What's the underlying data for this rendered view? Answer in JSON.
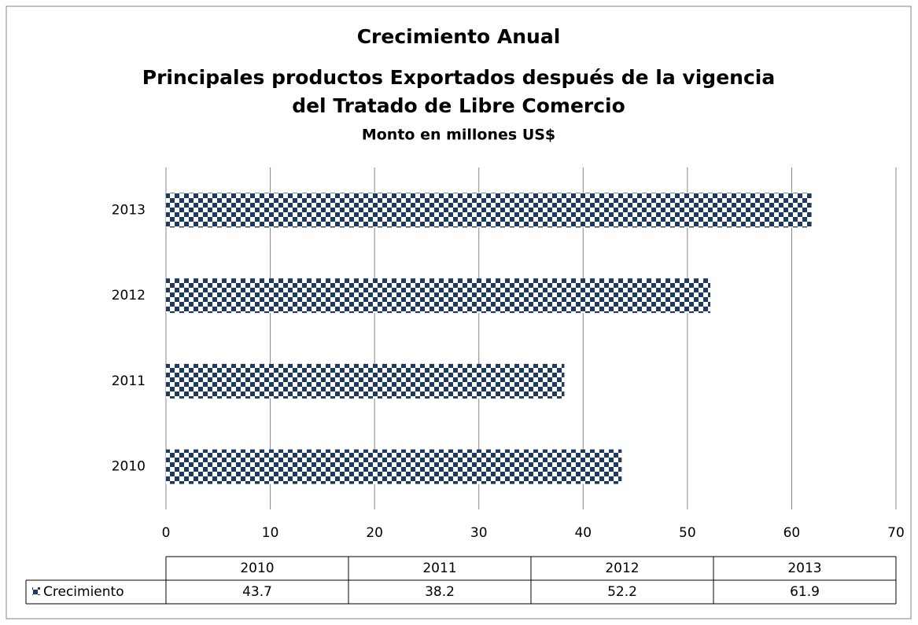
{
  "chart_data": {
    "type": "barh",
    "title": [
      "Crecimiento Anual",
      "Principales productos Exportados después de la vigencia",
      "del Tratado de Libre Comercio"
    ],
    "subtitle": "Monto en millones US$",
    "categories": [
      "2010",
      "2011",
      "2012",
      "2013"
    ],
    "series": [
      {
        "name": "Crecimiento",
        "color": "#1f3a5f",
        "values": [
          43.7,
          38.2,
          52.2,
          61.9
        ]
      }
    ],
    "xlim": [
      0,
      70
    ],
    "xticks": [
      0,
      10,
      20,
      30,
      40,
      50,
      60,
      70
    ],
    "grid": true,
    "data_table": true
  }
}
